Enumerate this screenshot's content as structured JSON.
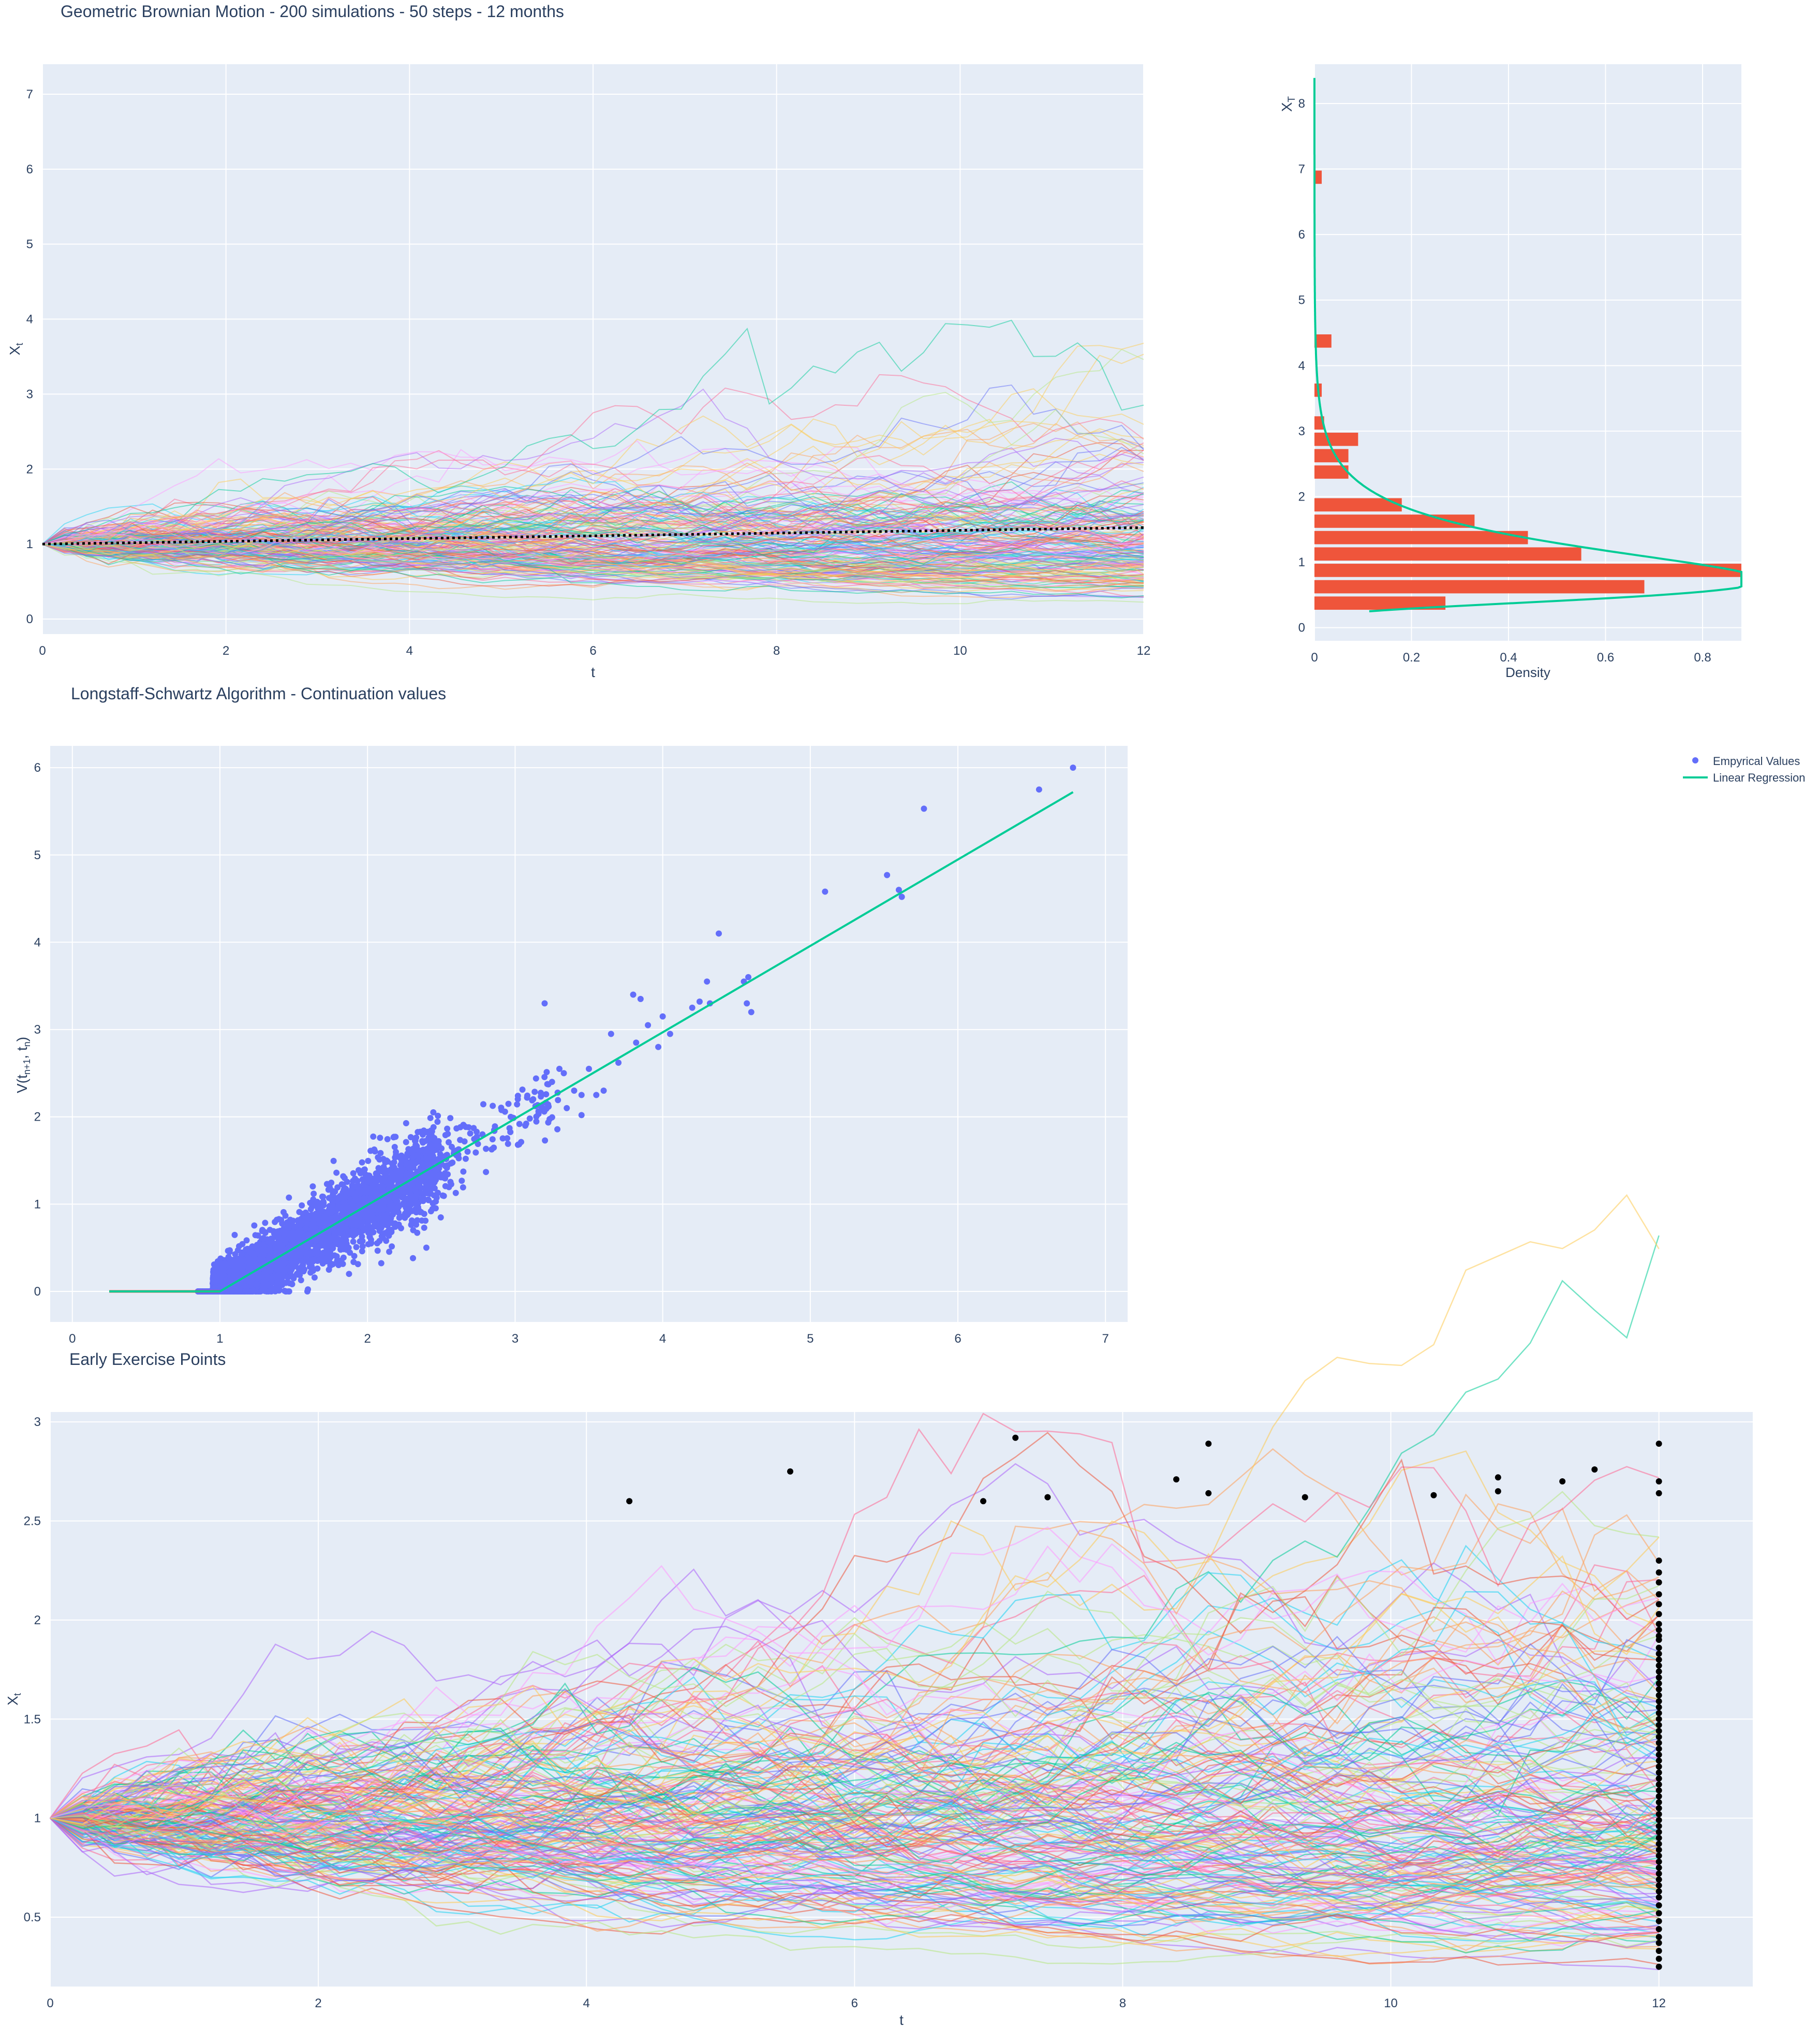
{
  "chart_data": [
    {
      "type": "line",
      "title": "Geometric Brownian Motion - 200 simulations - 50 steps - 12 months",
      "xlabel": "t",
      "ylabel": "X",
      "ylabel_sub": "t",
      "xlim": [
        0,
        12
      ],
      "ylim": [
        -0.2,
        7.4
      ],
      "x_ticks": [
        0,
        2,
        4,
        6,
        8,
        10,
        12
      ],
      "y_ticks": [
        0,
        1,
        2,
        3,
        4,
        5,
        6,
        7
      ],
      "n_paths": 200,
      "n_steps": 50,
      "start_value": 1,
      "mean_path": {
        "start": 1,
        "end": 1.22,
        "style": "dotted"
      }
    },
    {
      "type": "bar",
      "orientation": "horizontal",
      "xlabel": "Density",
      "ylabel": "X",
      "ylabel_sub": "T",
      "xlim": [
        0,
        0.88
      ],
      "ylim": [
        -0.2,
        8.6
      ],
      "x_ticks": [
        0,
        0.2,
        0.4,
        0.6,
        0.8
      ],
      "y_ticks": [
        0,
        1,
        2,
        3,
        4,
        5,
        6,
        7,
        8
      ],
      "bins": [
        {
          "y0": 0.25,
          "y1": 0.5,
          "density": 0.27
        },
        {
          "y0": 0.5,
          "y1": 0.75,
          "density": 0.68
        },
        {
          "y0": 0.75,
          "y1": 1.0,
          "density": 0.88
        },
        {
          "y0": 1.0,
          "y1": 1.25,
          "density": 0.55
        },
        {
          "y0": 1.25,
          "y1": 1.5,
          "density": 0.44
        },
        {
          "y0": 1.5,
          "y1": 1.75,
          "density": 0.33
        },
        {
          "y0": 1.75,
          "y1": 2.0,
          "density": 0.18
        },
        {
          "y0": 2.25,
          "y1": 2.5,
          "density": 0.07
        },
        {
          "y0": 2.5,
          "y1": 2.75,
          "density": 0.07
        },
        {
          "y0": 2.75,
          "y1": 3.0,
          "density": 0.09
        },
        {
          "y0": 3.0,
          "y1": 3.25,
          "density": 0.02
        },
        {
          "y0": 3.5,
          "y1": 3.75,
          "density": 0.015
        },
        {
          "y0": 4.25,
          "y1": 4.5,
          "density": 0.035
        },
        {
          "y0": 6.75,
          "y1": 7.0,
          "density": 0.015
        }
      ],
      "density_curve": {
        "mu": -0.05,
        "sigma": 0.52,
        "color": "#00cc96"
      }
    },
    {
      "type": "scatter",
      "title": "Longstaff-Schwartz Algorithm - Continuation values",
      "xlabel": "",
      "ylabel": "V(t",
      "ylabel_mid": ", t",
      "ylabel_end": ")",
      "ylabel_sub1": "n+1",
      "ylabel_sub2": "n",
      "xlim": [
        -0.15,
        7.15
      ],
      "ylim": [
        -0.35,
        6.25
      ],
      "x_ticks": [
        0,
        1,
        2,
        3,
        4,
        5,
        6,
        7
      ],
      "y_ticks": [
        0,
        1,
        2,
        3,
        4,
        5,
        6
      ],
      "series": [
        {
          "name": "Empyrical Values",
          "color": "#636efa",
          "mode": "markers",
          "points": [
            [
              3.2,
              3.3
            ],
            [
              3.65,
              2.95
            ],
            [
              3.7,
              2.62
            ],
            [
              3.8,
              3.4
            ],
            [
              3.85,
              3.35
            ],
            [
              3.82,
              2.85
            ],
            [
              3.9,
              3.05
            ],
            [
              4.0,
              3.15
            ],
            [
              3.97,
              2.8
            ],
            [
              4.05,
              2.95
            ],
            [
              4.2,
              3.25
            ],
            [
              4.25,
              3.32
            ],
            [
              4.3,
              3.55
            ],
            [
              4.32,
              3.3
            ],
            [
              4.38,
              4.1
            ],
            [
              4.55,
              3.55
            ],
            [
              4.58,
              3.6
            ],
            [
              4.6,
              3.2
            ],
            [
              4.57,
              3.3
            ],
            [
              5.1,
              4.58
            ],
            [
              5.52,
              4.77
            ],
            [
              5.6,
              4.6
            ],
            [
              5.62,
              4.52
            ],
            [
              5.77,
              5.53
            ],
            [
              6.55,
              5.75
            ],
            [
              6.78,
              6.0
            ],
            [
              3.25,
              2.4
            ],
            [
              3.3,
              2.55
            ],
            [
              3.35,
              2.1
            ],
            [
              3.4,
              2.3
            ],
            [
              3.45,
              2.25
            ],
            [
              3.5,
              2.55
            ],
            [
              3.55,
              2.25
            ],
            [
              3.6,
              2.3
            ],
            [
              3.45,
              2.02
            ],
            [
              3.33,
              2.5
            ]
          ]
        },
        {
          "name": "Linear Regression",
          "color": "#00cc96",
          "mode": "lines",
          "points": [
            [
              0.25,
              0
            ],
            [
              0.9,
              0
            ],
            [
              1.0,
              0
            ],
            [
              6.78,
              5.72
            ]
          ]
        }
      ]
    },
    {
      "type": "line",
      "title": "Early Exercise Points",
      "xlabel": "t",
      "ylabel": "X",
      "ylabel_sub": "t",
      "xlim": [
        0,
        12.7
      ],
      "ylim": [
        0.15,
        3.05
      ],
      "x_ticks": [
        0,
        2,
        4,
        6,
        8,
        10,
        12
      ],
      "y_ticks": [
        0.5,
        1,
        1.5,
        2,
        2.5,
        3
      ],
      "y_tick_labels": [
        "0.5",
        "1",
        "1.5",
        "2",
        "2.5",
        "3"
      ],
      "n_paths": 200,
      "exercise_points": [
        [
          4.32,
          2.6
        ],
        [
          5.52,
          2.75
        ],
        [
          6.96,
          2.6
        ],
        [
          7.2,
          2.92
        ],
        [
          7.44,
          2.62
        ],
        [
          8.4,
          2.71
        ],
        [
          8.64,
          2.89
        ],
        [
          8.64,
          2.64
        ],
        [
          9.36,
          2.62
        ],
        [
          10.32,
          2.63
        ],
        [
          10.8,
          2.72
        ],
        [
          10.8,
          2.65
        ],
        [
          11.28,
          2.7
        ],
        [
          11.52,
          2.76
        ],
        [
          12,
          2.89
        ],
        [
          12,
          2.7
        ],
        [
          12,
          2.64
        ],
        [
          12,
          2.3
        ],
        [
          12,
          2.24
        ],
        [
          12,
          2.19
        ],
        [
          12,
          2.13
        ],
        [
          12,
          2.08
        ],
        [
          12,
          2.03
        ],
        [
          12,
          1.98
        ],
        [
          12,
          1.95
        ],
        [
          12,
          1.92
        ],
        [
          12,
          1.9
        ],
        [
          12,
          1.86
        ],
        [
          12,
          1.83
        ],
        [
          12,
          1.8
        ],
        [
          12,
          1.77
        ],
        [
          12,
          1.74
        ],
        [
          12,
          1.71
        ],
        [
          12,
          1.68
        ],
        [
          12,
          1.65
        ],
        [
          12,
          1.62
        ],
        [
          12,
          1.59
        ],
        [
          12,
          1.56
        ],
        [
          12,
          1.53
        ],
        [
          12,
          1.5
        ],
        [
          12,
          1.47
        ],
        [
          12,
          1.44
        ],
        [
          12,
          1.41
        ],
        [
          12,
          1.38
        ],
        [
          12,
          1.35
        ],
        [
          12,
          1.32
        ],
        [
          12,
          1.29
        ],
        [
          12,
          1.26
        ],
        [
          12,
          1.23
        ],
        [
          12,
          1.2
        ],
        [
          12,
          1.17
        ],
        [
          12,
          1.14
        ],
        [
          12,
          1.11
        ],
        [
          12,
          1.08
        ],
        [
          12,
          1.05
        ],
        [
          12,
          1.02
        ],
        [
          12,
          0.99
        ],
        [
          12,
          0.96
        ],
        [
          12,
          0.93
        ],
        [
          12,
          0.9
        ],
        [
          12,
          0.87
        ],
        [
          12,
          0.84
        ],
        [
          12,
          0.81
        ],
        [
          12,
          0.78
        ],
        [
          12,
          0.75
        ],
        [
          12,
          0.72
        ],
        [
          12,
          0.69
        ],
        [
          12,
          0.66
        ],
        [
          12,
          0.63
        ],
        [
          12,
          0.6
        ],
        [
          12,
          0.56
        ],
        [
          12,
          0.52
        ],
        [
          12,
          0.48
        ],
        [
          12,
          0.44
        ],
        [
          12,
          0.4
        ],
        [
          12,
          0.37
        ],
        [
          12,
          0.33
        ],
        [
          12,
          0.29
        ],
        [
          12,
          0.25
        ]
      ]
    }
  ],
  "palette": [
    "#636efa",
    "#EF553B",
    "#00cc96",
    "#ab63fa",
    "#FFA15A",
    "#19d3f3",
    "#FF6692",
    "#B6E880",
    "#FF97FF",
    "#FECB52"
  ],
  "colors": {
    "plot_bg": "#e5ecf6",
    "grid": "#ffffff",
    "text": "#2a3f5f",
    "hist": "#ef553b",
    "points": "#636efa",
    "regression": "#00cc96",
    "exercise": "#000000"
  }
}
